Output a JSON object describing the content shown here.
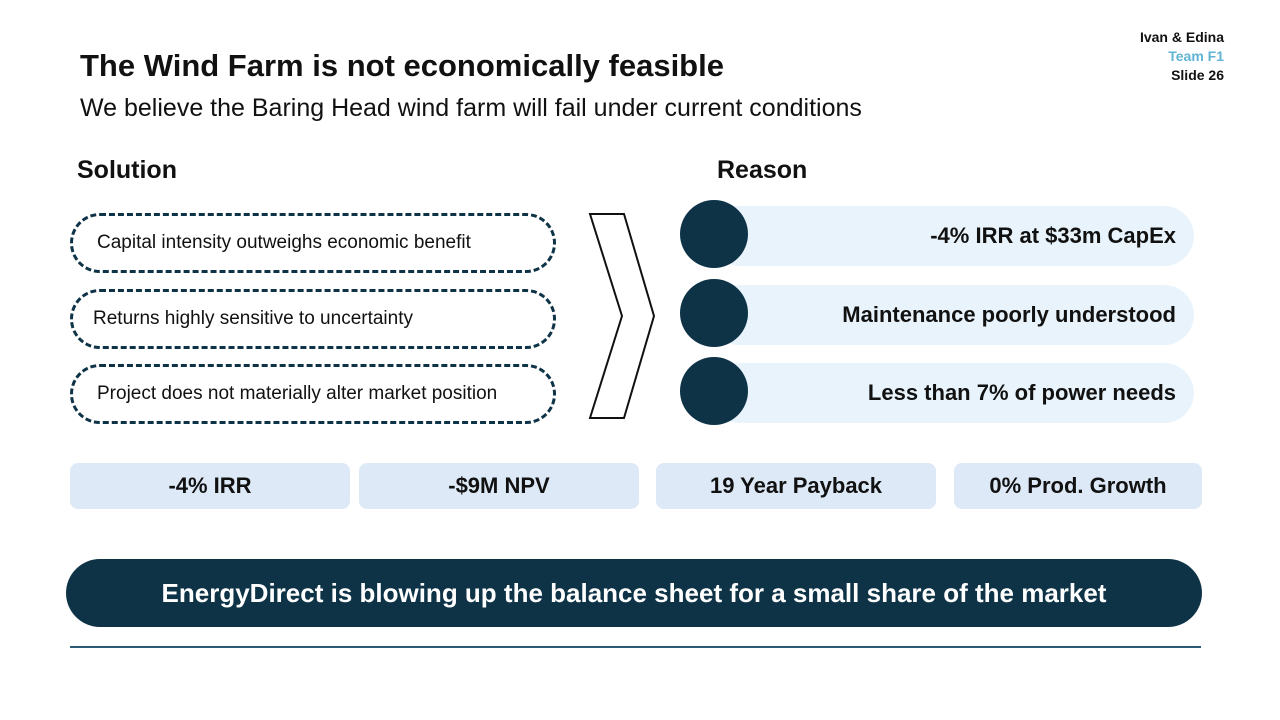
{
  "meta": {
    "authors": "Ivan & Edina",
    "team": "Team F1",
    "slide": "Slide 26"
  },
  "title": "The Wind Farm is not economically feasible",
  "subtitle": "We believe the Baring Head wind farm will fail under current conditions",
  "solution": {
    "heading": "Solution",
    "items": [
      "Capital intensity outweighs economic benefit",
      "Returns highly sensitive to uncertainty",
      "Project does not materially alter market position"
    ]
  },
  "reason": {
    "heading": "Reason",
    "items": [
      "-4% IRR at $33m CapEx",
      "Maintenance poorly understood",
      "Less than 7% of power needs"
    ]
  },
  "metrics": [
    "-4% IRR",
    "-$9M NPV",
    "19 Year Payback",
    "0% Prod. Growth"
  ],
  "conclusion": "EnergyDirect is blowing up the balance sheet for a small share of the market",
  "colors": {
    "navy": "#0e3347",
    "team_accent": "#5fb4d6",
    "reason_fill": "#e9f3fb",
    "metric_fill": "#dde9f6"
  }
}
